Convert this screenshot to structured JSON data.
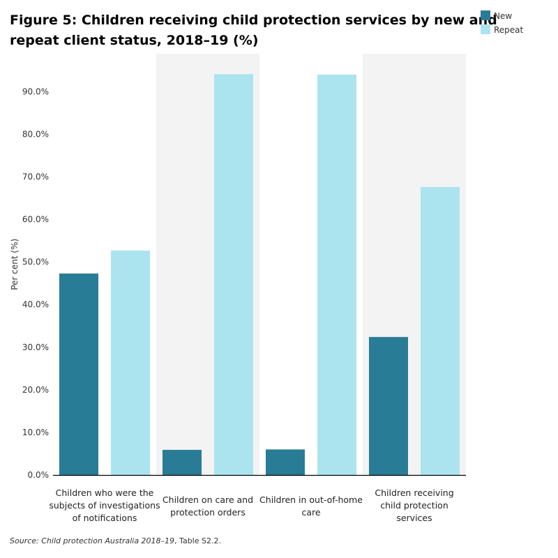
{
  "chart_data": {
    "type": "bar",
    "title_lines": [
      "Figure 5: Children receiving child protection services by new and",
      "repeat client status, 2018–19 (%)"
    ],
    "ylabel": "Per cent (%)",
    "xlabel": "",
    "ylim": [
      0,
      98.9
    ],
    "yticks": [
      "0.0%",
      "10.0%",
      "20.0%",
      "30.0%",
      "40.0%",
      "50.0%",
      "60.0%",
      "70.0%",
      "80.0%",
      "90.0%"
    ],
    "categories": [
      [
        "Children who were the",
        "subjects of investigations",
        "of notifications"
      ],
      [
        "Children on care and",
        "protection orders"
      ],
      [
        "Children in out-of-home",
        "care"
      ],
      [
        "Children receiving",
        "child protection",
        "services"
      ]
    ],
    "series": [
      {
        "name": "New",
        "color": "#297c96",
        "values": [
          47.3,
          5.9,
          6.0,
          32.4
        ]
      },
      {
        "name": "Repeat",
        "color": "#abe4ef",
        "values": [
          52.7,
          94.1,
          94.0,
          67.6
        ]
      }
    ],
    "legend_position": "top-right",
    "alternate_band_color": "#f3f3f3",
    "grid": false
  },
  "source": {
    "prefix": "Source: ",
    "italic": "Child protection Australia 2018–19",
    "rest": ", Table S2.2."
  }
}
